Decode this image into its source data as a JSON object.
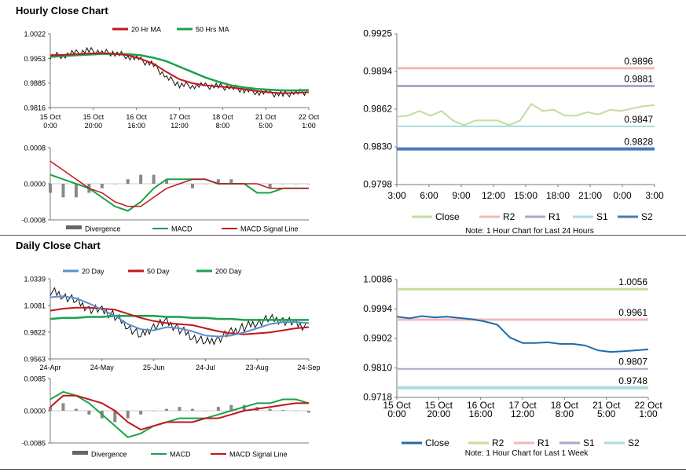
{
  "sections": {
    "hourly_title": "Hourly Close Chart",
    "daily_title": "Daily Close Chart"
  },
  "colors": {
    "close_green_light": "#c5dc9e",
    "r2_pink": "#f0b8b8",
    "r1_purple": "#b3a3c8",
    "s1_cyan": "#a9dcdc",
    "s2_blue": "#4a7ab8",
    "ma_red": "#c0161c",
    "ma_green": "#1aa24b",
    "ma_blue": "#5b8fcf",
    "daily_close": "#1f6aa8"
  },
  "chart_data": [
    {
      "id": "hourly_price",
      "type": "line",
      "legend": [
        "20 Hr MA",
        "50 Hrs MA"
      ],
      "ylim": [
        0.9816,
        1.0022
      ],
      "yticks": [
        "1.0022",
        "0.9953",
        "0.9885",
        "0.9816"
      ],
      "xticks": [
        [
          "15 Oct",
          "0:00"
        ],
        [
          "15 Oct",
          "20:00"
        ],
        [
          "16 Oct",
          "16:00"
        ],
        [
          "17 Oct",
          "12:00"
        ],
        [
          "18 Oct",
          "8:00"
        ],
        [
          "21 Oct",
          "5:00"
        ],
        [
          "22 Oct",
          "1:00"
        ]
      ],
      "series": [
        {
          "name": "Close",
          "values": [
            0.996,
            0.9962,
            0.9968,
            0.9975,
            0.997,
            0.9968,
            0.996,
            0.9948,
            0.9935,
            0.99,
            0.988,
            0.9878,
            0.9876,
            0.9875,
            0.9872,
            0.9866,
            0.986,
            0.9856,
            0.9852,
            0.9858,
            0.986
          ]
        },
        {
          "name": "20 Hr MA",
          "values": [
            0.9962,
            0.9963,
            0.9965,
            0.9967,
            0.9968,
            0.9966,
            0.9962,
            0.9952,
            0.9938,
            0.9915,
            0.9895,
            0.9884,
            0.9878,
            0.9875,
            0.9872,
            0.9867,
            0.9862,
            0.9858,
            0.9856,
            0.9857,
            0.9859
          ]
        },
        {
          "name": "50 Hrs MA",
          "values": [
            0.9958,
            0.996,
            0.9962,
            0.9964,
            0.9966,
            0.9966,
            0.9965,
            0.9962,
            0.9955,
            0.9945,
            0.993,
            0.9915,
            0.99,
            0.9888,
            0.9878,
            0.9872,
            0.9868,
            0.9866,
            0.9864,
            0.9864,
            0.9865
          ]
        }
      ]
    },
    {
      "id": "hourly_macd",
      "type": "bar",
      "legend": [
        "Divergence",
        "MACD",
        "MACD Signal Line"
      ],
      "ylim": [
        -0.0008,
        0.0008
      ],
      "yticks": [
        "0.0008",
        "0.0000",
        "-0.0008"
      ],
      "series": [
        {
          "name": "Divergence",
          "values": [
            -0.0002,
            -0.0003,
            -0.0003,
            -0.0002,
            -0.0001,
            0.0,
            0.0001,
            0.0002,
            0.0002,
            0.0001,
            0.0,
            -0.0001,
            0.0,
            0.0001,
            0.0001,
            0.0,
            0.0,
            -0.0001,
            0.0,
            0.0,
            0.0
          ]
        },
        {
          "name": "MACD",
          "values": [
            0.0002,
            0.0001,
            0.0,
            -0.0001,
            -0.0003,
            -0.0005,
            -0.0006,
            -0.0004,
            -0.0001,
            0.0001,
            0.0001,
            0.0001,
            0.0001,
            0.0,
            0.0,
            0.0,
            -0.0002,
            -0.0002,
            -0.0001,
            -0.0001,
            -0.0001
          ]
        },
        {
          "name": "MACD Signal Line",
          "values": [
            0.0005,
            0.0003,
            0.0001,
            -0.0001,
            -0.0002,
            -0.0004,
            -0.0005,
            -0.0005,
            -0.0003,
            -0.0001,
            0.0,
            0.0001,
            0.0001,
            0.0,
            0.0,
            0.0,
            0.0,
            -0.0001,
            -0.0001,
            -0.0001,
            -0.0001
          ]
        }
      ]
    },
    {
      "id": "hourly_levels",
      "type": "line",
      "ylim": [
        0.9798,
        0.9925
      ],
      "yticks": [
        "0.9925",
        "0.9894",
        "0.9862",
        "0.9830",
        "0.9798"
      ],
      "xticks": [
        "3:00",
        "6:00",
        "9:00",
        "12:00",
        "15:00",
        "18:00",
        "21:00",
        "0:00",
        "3:00"
      ],
      "legend": [
        "Close",
        "R2",
        "R1",
        "S1",
        "S2"
      ],
      "note": "Note: 1 Hour Chart for Last 24 Hours",
      "levels": [
        {
          "name": "R2",
          "value": 0.9896,
          "label": "0.9896"
        },
        {
          "name": "R1",
          "value": 0.9881,
          "label": "0.9881"
        },
        {
          "name": "S1",
          "value": 0.9847,
          "label": "0.9847"
        },
        {
          "name": "S2",
          "value": 0.9828,
          "label": "0.9828"
        }
      ],
      "series": [
        {
          "name": "Close",
          "values": [
            0.9855,
            0.9856,
            0.986,
            0.9856,
            0.986,
            0.9852,
            0.9848,
            0.9852,
            0.9852,
            0.9852,
            0.9848,
            0.9852,
            0.9866,
            0.986,
            0.9861,
            0.9856,
            0.9856,
            0.9859,
            0.9857,
            0.9861,
            0.986,
            0.9862,
            0.9864,
            0.9865
          ]
        }
      ]
    },
    {
      "id": "daily_price",
      "type": "line",
      "legend": [
        "20 Day",
        "50 Day",
        "200 Day"
      ],
      "ylim": [
        0.9563,
        1.0339
      ],
      "yticks": [
        "1.0339",
        "1.0081",
        "0.9822",
        "0.9563"
      ],
      "xticks": [
        "24-Apr",
        "24-May",
        "25-Jun",
        "24-Jul",
        "23-Aug",
        "24-Sep"
      ],
      "series": [
        {
          "name": "Close",
          "values": [
            1.022,
            1.018,
            1.012,
            1.005,
            1.003,
            0.998,
            0.988,
            0.978,
            0.988,
            0.992,
            0.985,
            0.978,
            0.972,
            0.976,
            0.982,
            0.987,
            0.992,
            0.995,
            0.994,
            0.99,
            0.987
          ]
        },
        {
          "name": "20 Day",
          "values": [
            1.016,
            1.017,
            1.015,
            1.01,
            1.004,
            0.998,
            0.99,
            0.985,
            0.984,
            0.987,
            0.986,
            0.983,
            0.979,
            0.978,
            0.979,
            0.982,
            0.986,
            0.99,
            0.992,
            0.992,
            0.991
          ]
        },
        {
          "name": "50 Day",
          "values": [
            1.003,
            1.005,
            1.006,
            1.006,
            1.005,
            1.004,
            1.0,
            0.996,
            0.993,
            0.991,
            0.99,
            0.989,
            0.986,
            0.983,
            0.981,
            0.98,
            0.981,
            0.982,
            0.984,
            0.986,
            0.987
          ]
        },
        {
          "name": "200 Day",
          "values": [
            0.995,
            0.996,
            0.996,
            0.997,
            0.997,
            0.998,
            0.998,
            0.998,
            0.998,
            0.997,
            0.997,
            0.996,
            0.996,
            0.995,
            0.995,
            0.994,
            0.994,
            0.994,
            0.994,
            0.994,
            0.994
          ]
        }
      ]
    },
    {
      "id": "daily_macd",
      "type": "bar",
      "legend": [
        "Divergence",
        "MACD",
        "MACD Signal Line"
      ],
      "ylim": [
        -0.0085,
        0.0085
      ],
      "yticks": [
        "0.0085",
        "0.0000",
        "-0.0085"
      ],
      "series": [
        {
          "name": "Divergence",
          "values": [
            0.001,
            0.002,
            0.0005,
            -0.001,
            -0.002,
            -0.003,
            -0.002,
            -0.001,
            0.0,
            0.0005,
            0.001,
            0.0005,
            0.0,
            0.001,
            0.0015,
            0.0015,
            0.001,
            0.0005,
            0.0002,
            0.0,
            -0.0005
          ]
        },
        {
          "name": "MACD",
          "values": [
            0.003,
            0.005,
            0.004,
            0.002,
            -0.001,
            -0.004,
            -0.007,
            -0.006,
            -0.004,
            -0.003,
            -0.002,
            -0.002,
            -0.002,
            -0.001,
            0.0,
            0.001,
            0.002,
            0.002,
            0.003,
            0.003,
            0.002
          ]
        },
        {
          "name": "MACD Signal Line",
          "values": [
            0.001,
            0.004,
            0.004,
            0.003,
            0.002,
            0.0,
            -0.003,
            -0.005,
            -0.004,
            -0.003,
            -0.003,
            -0.003,
            -0.002,
            -0.002,
            -0.001,
            0.0,
            0.0005,
            0.001,
            0.0015,
            0.002,
            0.002
          ]
        }
      ]
    },
    {
      "id": "daily_levels",
      "type": "line",
      "ylim": [
        0.9718,
        1.0086
      ],
      "yticks": [
        "1.0086",
        "0.9994",
        "0.9902",
        "0.9810",
        "0.9718"
      ],
      "xticks": [
        [
          "15 Oct",
          "0:00"
        ],
        [
          "15 Oct",
          "20:00"
        ],
        [
          "16 Oct",
          "16:00"
        ],
        [
          "17 Oct",
          "12:00"
        ],
        [
          "18 Oct",
          "8:00"
        ],
        [
          "21 Oct",
          "5:00"
        ],
        [
          "22 Oct",
          "1:00"
        ]
      ],
      "legend": [
        "Close",
        "R2",
        "R1",
        "S1",
        "S2"
      ],
      "note": "Note: 1 Hour Chart for Last 1 Week",
      "levels": [
        {
          "name": "R2",
          "value": 1.0056,
          "label": "1.0056"
        },
        {
          "name": "R1",
          "value": 0.9961,
          "label": "0.9961"
        },
        {
          "name": "S1",
          "value": 0.9807,
          "label": "0.9807"
        },
        {
          "name": "S2",
          "value": 0.9748,
          "label": "0.9748"
        }
      ],
      "series": [
        {
          "name": "Close",
          "values": [
            0.997,
            0.9965,
            0.9972,
            0.9968,
            0.997,
            0.9966,
            0.9962,
            0.9955,
            0.9945,
            0.9905,
            0.9888,
            0.9888,
            0.989,
            0.9885,
            0.9885,
            0.988,
            0.9865,
            0.986,
            0.9862,
            0.9865,
            0.9868
          ]
        }
      ]
    }
  ]
}
